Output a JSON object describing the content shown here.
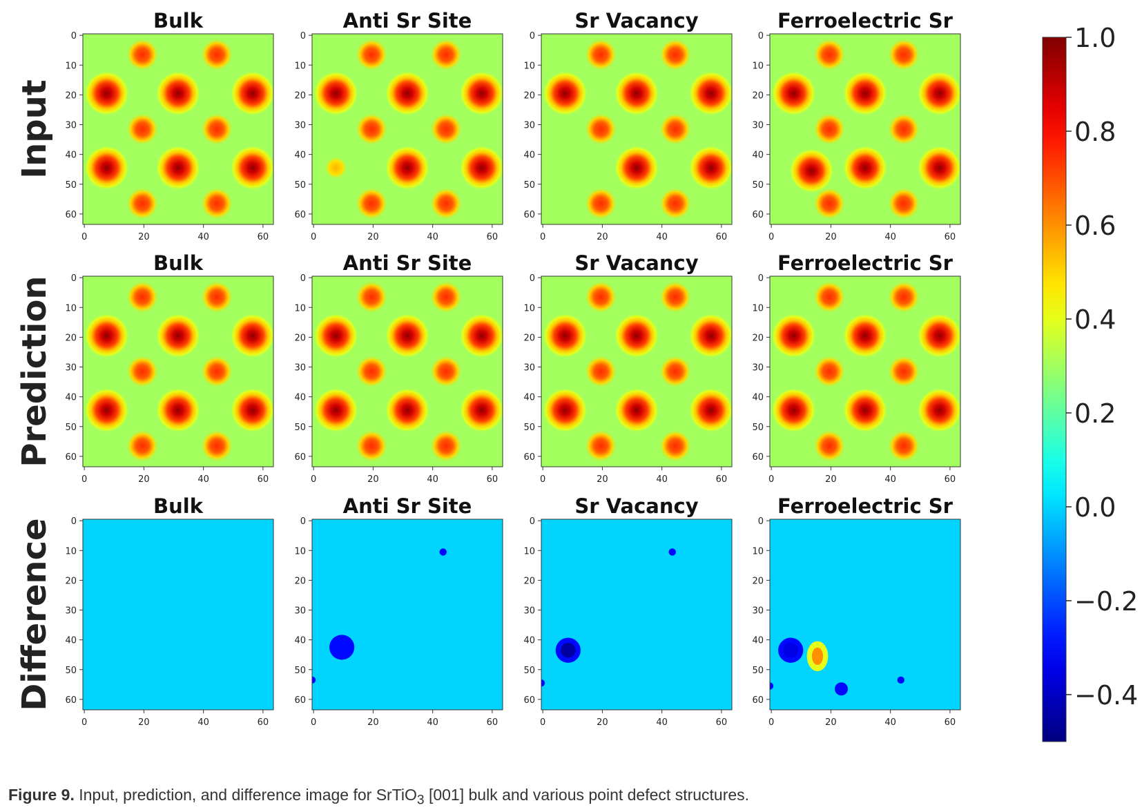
{
  "chart_data": {
    "type": "heatmap",
    "row_labels": [
      "Input",
      "Prediction",
      "Difference"
    ],
    "column_titles": [
      "Bulk",
      "Anti Sr Site",
      "Sr Vacancy",
      "Ferroelectric Sr"
    ],
    "x_ticks": [
      "0",
      "20",
      "40",
      "60"
    ],
    "y_ticks": [
      "0",
      "10",
      "20",
      "30",
      "40",
      "50",
      "60"
    ],
    "xlim": [
      0,
      64
    ],
    "ylim": [
      0,
      64
    ],
    "colorbar": {
      "range": [
        -0.5,
        1.0
      ],
      "ticks": [
        "1.0",
        "0.8",
        "0.6",
        "0.4",
        "0.2",
        "0.0",
        "−0.2",
        "−0.4"
      ],
      "tick_values": [
        1.0,
        0.8,
        0.6,
        0.4,
        0.2,
        0.0,
        -0.2,
        -0.4
      ],
      "colormap": "jet"
    },
    "peak_sites": {
      "large": [
        [
          8,
          20
        ],
        [
          32,
          20
        ],
        [
          57,
          20
        ],
        [
          8,
          45
        ],
        [
          32,
          45
        ],
        [
          57,
          45
        ]
      ],
      "small": [
        [
          20,
          7
        ],
        [
          45,
          7
        ],
        [
          20,
          32
        ],
        [
          45,
          32
        ],
        [
          20,
          57
        ],
        [
          45,
          57
        ]
      ]
    },
    "background_value": 0.3,
    "difference_background": 0.0,
    "difference_features": {
      "Anti Sr Site": [
        {
          "x": 44,
          "y": 11,
          "value": -0.2
        },
        {
          "x": 10,
          "y": 43,
          "value": -0.3
        },
        {
          "x": 0,
          "y": 54,
          "value": -0.2
        }
      ],
      "Sr Vacancy": [
        {
          "x": 44,
          "y": 11,
          "value": -0.2
        },
        {
          "x": 9,
          "y": 44,
          "value": -0.45
        },
        {
          "x": 0,
          "y": 55,
          "value": -0.2
        }
      ],
      "Ferroelectric Sr": [
        {
          "x": 7,
          "y": 44,
          "value": -0.35
        },
        {
          "x": 16,
          "y": 46,
          "value": 0.4
        },
        {
          "x": 24,
          "y": 57,
          "value": -0.25
        },
        {
          "x": 44,
          "y": 54,
          "value": -0.2
        },
        {
          "x": 0,
          "y": 56,
          "value": -0.2
        }
      ]
    }
  },
  "caption": {
    "label": "Figure 9.",
    "text_before": "Input, prediction, and difference image for SrTiO",
    "subscript": "3",
    "text_after": " [001] bulk and various point defect structures."
  }
}
